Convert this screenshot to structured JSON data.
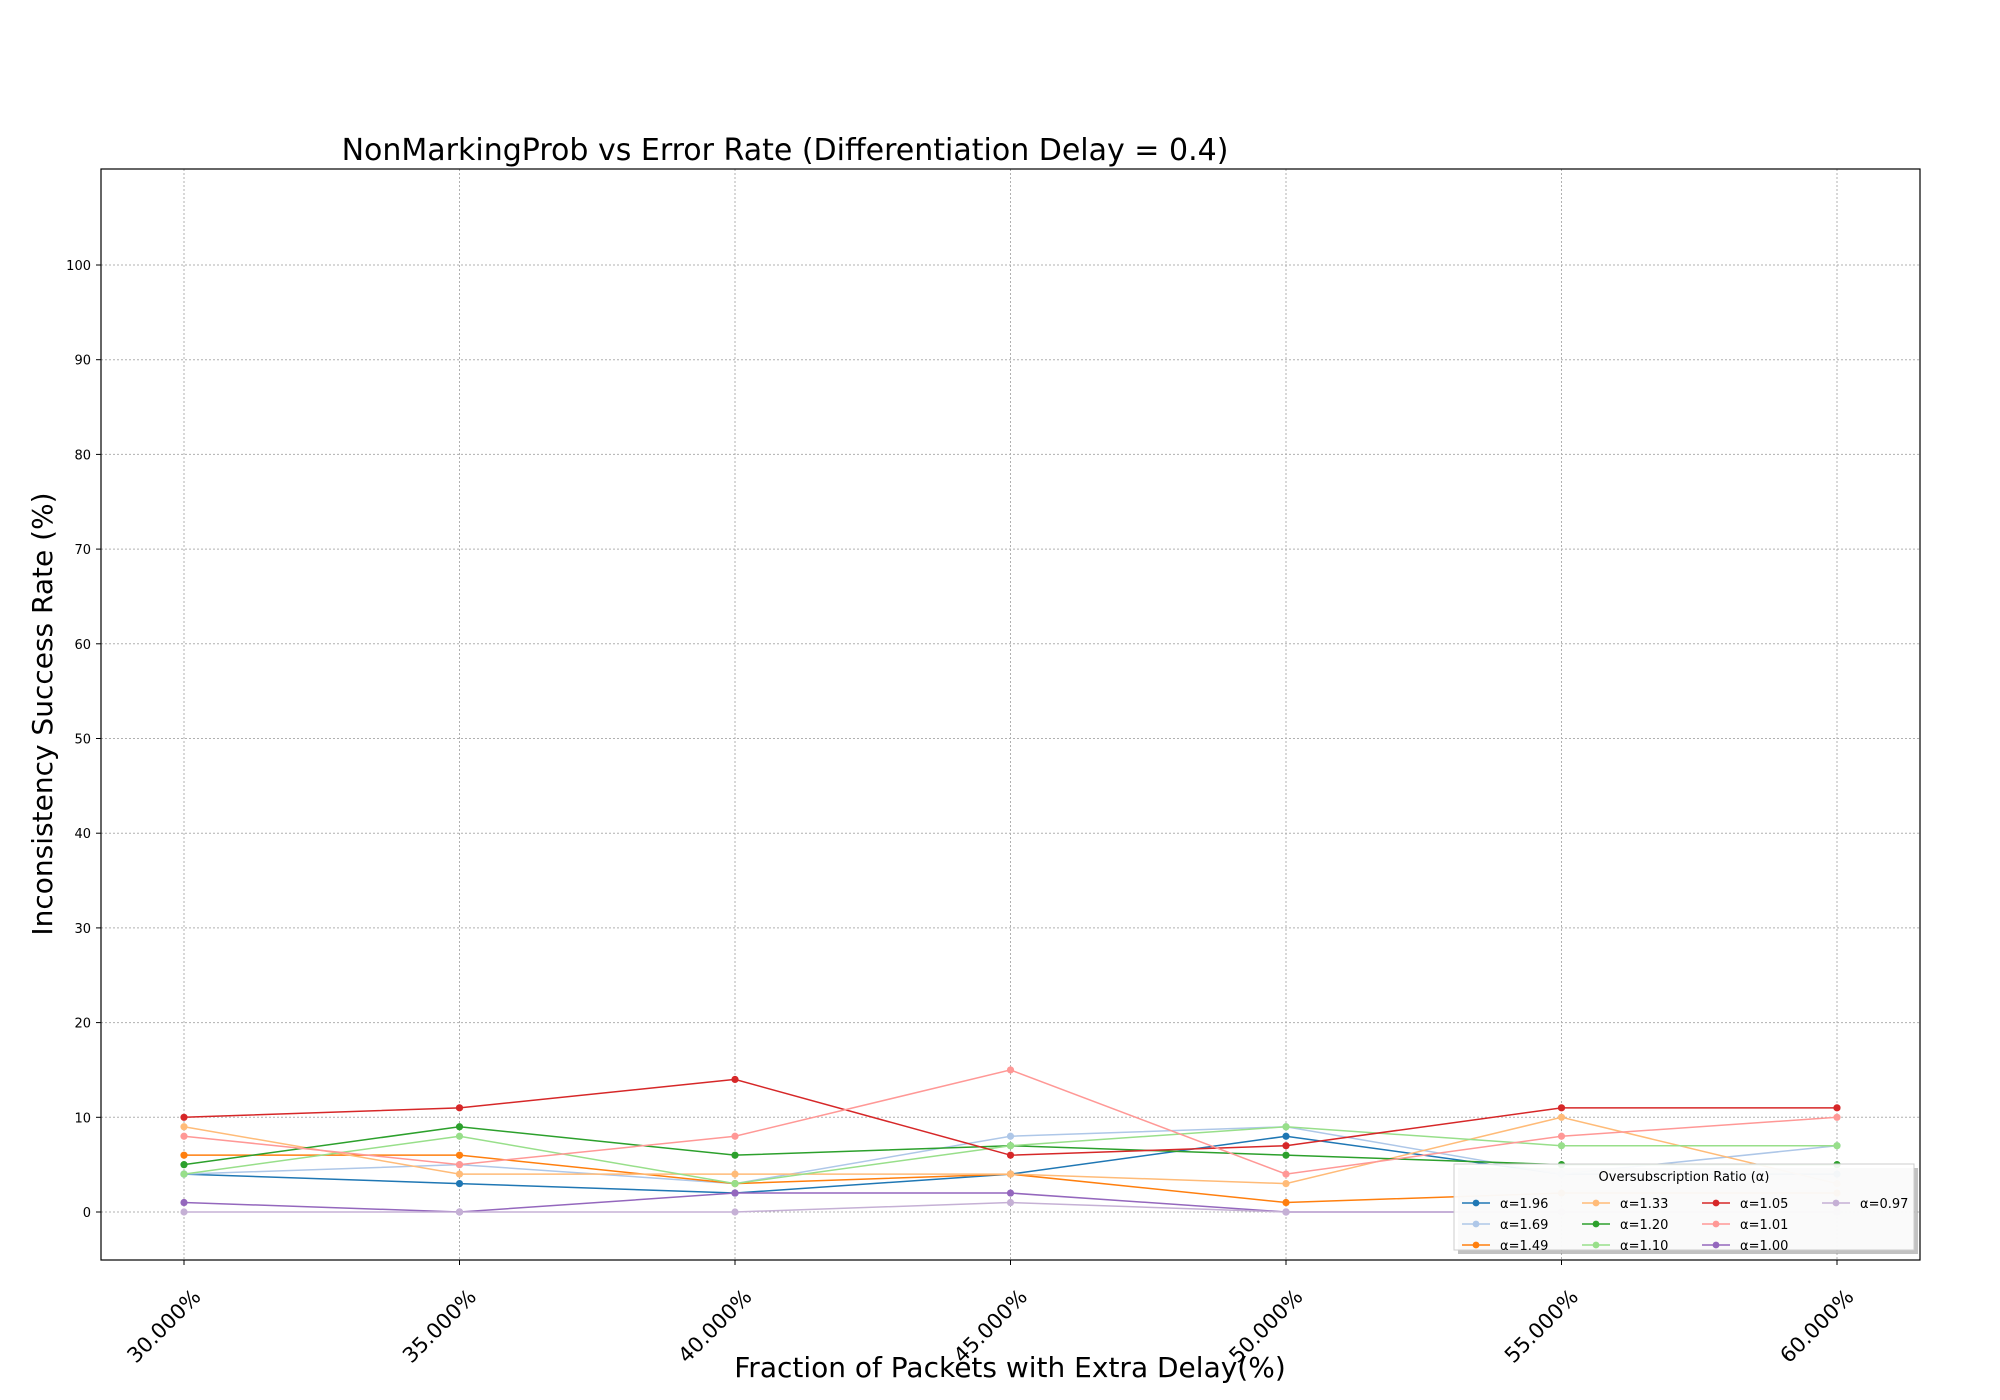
{
  "chart_data": {
    "type": "line",
    "title": "NonMarkingProb vs Error Rate (Differentiation Delay = 0.4)",
    "xlabel": "Fraction of Packets with Extra Delay(%)",
    "ylabel": "Inconsistency Success Rate (%)",
    "x": [
      30,
      35,
      40,
      45,
      50,
      55,
      60
    ],
    "x_tick_labels": [
      "30.000%",
      "35.000%",
      "40.000%",
      "45.000%",
      "50.000%",
      "55.000%",
      "60.000%"
    ],
    "xlim": [
      28.5,
      61.5
    ],
    "ylim": [
      -5,
      110
    ],
    "y_ticks": [
      0,
      10,
      20,
      30,
      40,
      50,
      60,
      70,
      80,
      90,
      100
    ],
    "grid": true,
    "legend": {
      "title": "Oversubscription Ratio (α)",
      "placement": "lower right",
      "columns": 4
    },
    "series": [
      {
        "name": "α=1.96",
        "color": "#1f77b4",
        "values": [
          4,
          3,
          2,
          4,
          8,
          4,
          4
        ]
      },
      {
        "name": "α=1.69",
        "color": "#aec7e8",
        "values": [
          4,
          5,
          3,
          8,
          9,
          4,
          7
        ]
      },
      {
        "name": "α=1.49",
        "color": "#ff7f0e",
        "values": [
          6,
          6,
          3,
          4,
          1,
          2,
          2
        ]
      },
      {
        "name": "α=1.33",
        "color": "#ffbb78",
        "values": [
          9,
          4,
          4,
          4,
          3,
          10,
          3
        ]
      },
      {
        "name": "α=1.20",
        "color": "#2ca02c",
        "values": [
          5,
          9,
          6,
          7,
          6,
          5,
          5
        ]
      },
      {
        "name": "α=1.10",
        "color": "#98df8a",
        "values": [
          4,
          8,
          3,
          7,
          9,
          7,
          7
        ]
      },
      {
        "name": "α=1.05",
        "color": "#d62728",
        "values": [
          10,
          11,
          14,
          6,
          7,
          11,
          11
        ]
      },
      {
        "name": "α=1.01",
        "color": "#ff9896",
        "values": [
          8,
          5,
          8,
          15,
          4,
          8,
          10
        ]
      },
      {
        "name": "α=1.00",
        "color": "#9467bd",
        "values": [
          1,
          0,
          2,
          2,
          0,
          0,
          0
        ]
      },
      {
        "name": "α=0.97",
        "color": "#c5b0d5",
        "values": [
          0,
          0,
          0,
          1,
          0,
          0,
          0
        ]
      }
    ]
  }
}
